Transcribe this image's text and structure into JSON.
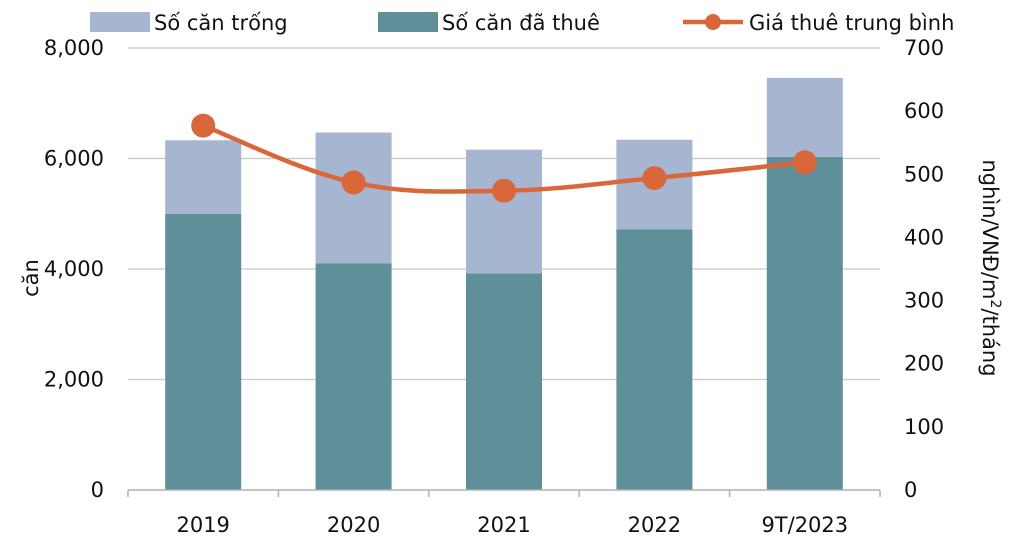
{
  "chart_data": {
    "type": "bar",
    "stacked": true,
    "categories": [
      "2019",
      "2020",
      "2021",
      "2022",
      "9T/2023"
    ],
    "series": [
      {
        "name": "Số căn đã thuê",
        "kind": "bar",
        "axis": "left",
        "color": "#5f8f99",
        "values": [
          5000,
          4100,
          3920,
          4720,
          6030
        ]
      },
      {
        "name": "Số căn trống",
        "kind": "bar",
        "axis": "left",
        "color": "#a6b5d0",
        "values": [
          1330,
          2370,
          2240,
          1620,
          1430
        ]
      },
      {
        "name": "Giá thuê trung bình",
        "kind": "line",
        "axis": "right",
        "color": "#d9673a",
        "values": [
          577,
          487,
          474,
          494,
          519
        ]
      }
    ],
    "legend": [
      "Số căn trống",
      "Số căn đã thuê",
      "Giá thuê trung bình"
    ],
    "y_left": {
      "label": "căn",
      "ylim": [
        0,
        8000
      ],
      "ticks": [
        "0",
        "2,000",
        "4,000",
        "6,000",
        "8,000"
      ]
    },
    "y_right": {
      "label": "nghìn/VNĐ/m²/tháng",
      "ylim": [
        0,
        700
      ],
      "ticks": [
        "0",
        "100",
        "200",
        "300",
        "400",
        "500",
        "600",
        "700"
      ]
    },
    "grid": true,
    "legend_position": "top"
  }
}
